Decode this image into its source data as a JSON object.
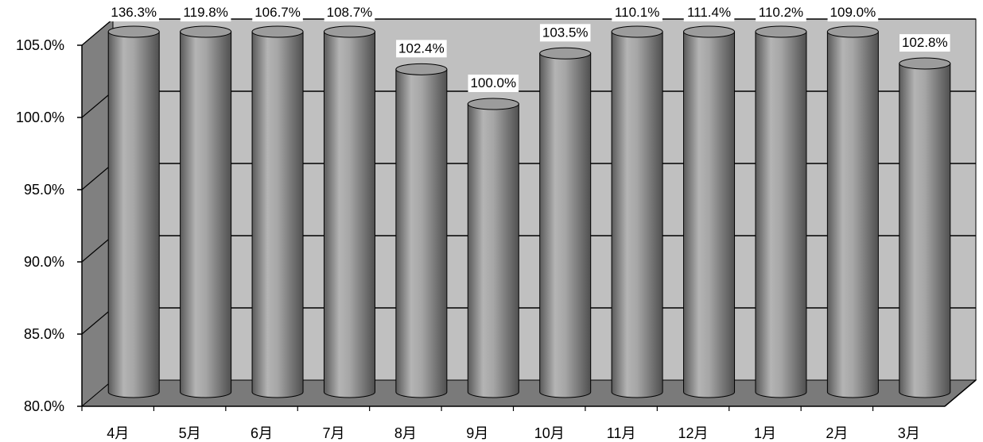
{
  "chart_data": {
    "type": "bar",
    "style": "3d-cylinder",
    "categories": [
      "4月",
      "5月",
      "6月",
      "7月",
      "8月",
      "9月",
      "10月",
      "11月",
      "12月",
      "1月",
      "2月",
      "3月"
    ],
    "values": [
      136.3,
      119.8,
      106.7,
      108.7,
      102.4,
      100.0,
      103.5,
      110.1,
      111.4,
      110.2,
      109.0,
      102.8
    ],
    "data_labels": [
      "136.3%",
      "119.8%",
      "106.7%",
      "108.7%",
      "102.4%",
      "100.0%",
      "103.5%",
      "110.1%",
      "111.4%",
      "110.2%",
      "109.0%",
      "102.8%"
    ],
    "yticks": [
      "80.0%",
      "85.0%",
      "90.0%",
      "95.0%",
      "100.0%",
      "105.0%"
    ],
    "ylim": [
      80,
      105
    ],
    "grid": true,
    "legend": "none",
    "title": "",
    "xlabel": "",
    "ylabel": "",
    "colors": {
      "back_wall": "#c0c0c0",
      "side_wall": "#808080",
      "floor": "#7a7a7a",
      "bar_light": "#c8c8c8",
      "bar_mid": "#9a9a9a",
      "bar_dark": "#4a4a4a",
      "label_bg": "#ffffff"
    }
  }
}
